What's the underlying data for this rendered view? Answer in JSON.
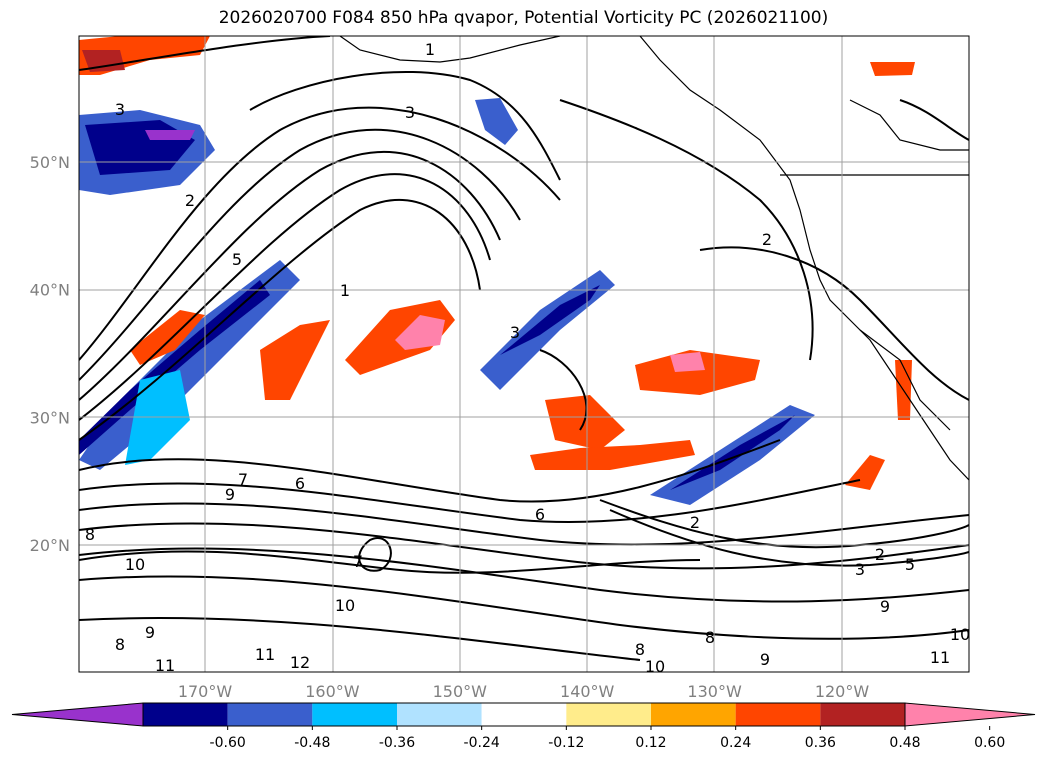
{
  "title": "2026020700 F084 850 hPa qvapor, Potential Vorticity PC (2026021100)",
  "chart_data": {
    "type": "heatmap",
    "title": "2026020700 F084 850 hPa qvapor, Potential Vorticity PC (2026021100)",
    "projection": "map",
    "grid": true,
    "lat_labels": [
      "50°N",
      "40°N",
      "30°N",
      "20°N"
    ],
    "lat_values": [
      50,
      40,
      30,
      20
    ],
    "lon_labels": [
      "170°W",
      "160°W",
      "150°W",
      "140°W",
      "130°W",
      "120°W"
    ],
    "lon_values": [
      -170,
      -160,
      -150,
      -140,
      -130,
      -120
    ],
    "colorbar": {
      "ticks": [
        "-0.60",
        "-0.48",
        "-0.36",
        "-0.24",
        "-0.12",
        "0.12",
        "0.24",
        "0.36",
        "0.48",
        "0.60"
      ],
      "colors": [
        "#9932cc",
        "#00008b",
        "#3a5fcd",
        "#00bfff",
        "#b0e2ff",
        "#ffffff",
        "#ffec8b",
        "#ffa500",
        "#ff4500",
        "#b22222",
        "#ff82ab"
      ],
      "extend": "both"
    },
    "contour_labels": [
      "1",
      "2",
      "3",
      "5",
      "6",
      "7",
      "8",
      "9",
      "10",
      "11",
      "12"
    ]
  }
}
